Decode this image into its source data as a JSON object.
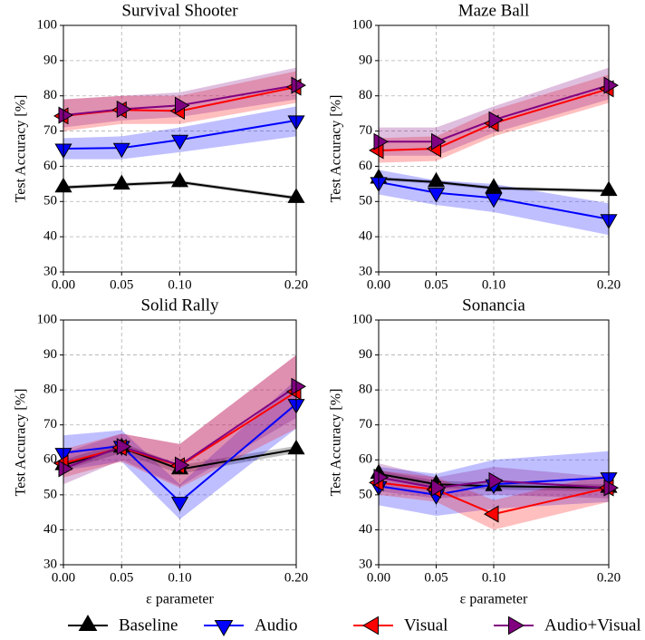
{
  "chart_data": [
    {
      "type": "line",
      "title": "Survival Shooter",
      "ylabel": "Test Accuracy [%]",
      "x": [
        0,
        0.05,
        0.1,
        0.2
      ],
      "xlim": [
        0,
        0.2
      ],
      "ylim": [
        30,
        100
      ],
      "xticks": [
        {
          "value": 0,
          "label": "0.00"
        },
        {
          "value": 0.05,
          "label": "0.05"
        },
        {
          "value": 0.1,
          "label": "0.10"
        },
        {
          "value": 0.2,
          "label": "0.20"
        }
      ],
      "yticks": [
        30,
        40,
        50,
        60,
        70,
        80,
        90,
        100
      ],
      "grid": true,
      "series": [
        {
          "name": "Baseline",
          "color": "#000000",
          "marker": "^",
          "values": [
            54,
            54.8,
            55.5,
            51
          ],
          "lower": [
            53.5,
            54.3,
            55,
            50.5
          ],
          "upper": [
            54.5,
            55.3,
            56,
            51.5
          ]
        },
        {
          "name": "Audio",
          "color": "#0000ff",
          "marker": "v",
          "values": [
            65,
            65.2,
            67.5,
            73
          ],
          "lower": [
            62,
            62,
            64,
            68.5
          ],
          "upper": [
            68,
            68.5,
            71,
            77
          ]
        },
        {
          "name": "Visual",
          "color": "#ff0000",
          "marker": "<",
          "values": [
            74.3,
            76,
            75.7,
            82.5
          ],
          "lower": [
            70,
            72,
            72,
            78
          ],
          "upper": [
            79,
            80,
            80,
            87
          ]
        },
        {
          "name": "Audio+Visual",
          "color": "#800080",
          "marker": ">",
          "values": [
            74.5,
            76.2,
            77.3,
            83
          ],
          "lower": [
            71,
            73,
            74,
            79
          ],
          "upper": [
            79,
            80,
            81,
            88
          ]
        }
      ]
    },
    {
      "type": "line",
      "title": "Maze Ball",
      "ylabel": "Test Accuracy [%]",
      "x": [
        0,
        0.05,
        0.1,
        0.2
      ],
      "xlim": [
        0,
        0.2
      ],
      "ylim": [
        30,
        100
      ],
      "xticks": [
        {
          "value": 0,
          "label": "0.00"
        },
        {
          "value": 0.05,
          "label": "0.05"
        },
        {
          "value": 0.1,
          "label": "0.10"
        },
        {
          "value": 0.2,
          "label": "0.20"
        }
      ],
      "yticks": [
        30,
        40,
        50,
        60,
        70,
        80,
        90,
        100
      ],
      "grid": true,
      "series": [
        {
          "color": "#000000",
          "marker": "^",
          "values": [
            56.5,
            55.5,
            53.8,
            53
          ],
          "lower": [
            56,
            55,
            53.3,
            52.5
          ],
          "upper": [
            57,
            56,
            54.3,
            53.5
          ]
        },
        {
          "color": "#0000ff",
          "marker": "v",
          "values": [
            55.5,
            52.5,
            51,
            45
          ],
          "lower": [
            52,
            49,
            47,
            40.5
          ],
          "upper": [
            59,
            56,
            55,
            49.5
          ]
        },
        {
          "color": "#ff0000",
          "marker": "<",
          "values": [
            64.5,
            65,
            72.2,
            82
          ],
          "lower": [
            61,
            61.5,
            68.5,
            78
          ],
          "upper": [
            68,
            68.5,
            76,
            86
          ]
        },
        {
          "color": "#800080",
          "marker": ">",
          "values": [
            67,
            67,
            73.2,
            83
          ],
          "lower": [
            63,
            63,
            69.5,
            79
          ],
          "upper": [
            71,
            71,
            77,
            88
          ]
        }
      ]
    },
    {
      "type": "line",
      "title": "Solid Rally",
      "ylabel": "Test Accuracy [%]",
      "xlabel": "ε parameter",
      "x": [
        0,
        0.05,
        0.1,
        0.2
      ],
      "xlim": [
        0,
        0.2
      ],
      "ylim": [
        30,
        100
      ],
      "xticks": [
        {
          "value": 0,
          "label": "0.00"
        },
        {
          "value": 0.05,
          "label": "0.05"
        },
        {
          "value": 0.1,
          "label": "0.10"
        },
        {
          "value": 0.2,
          "label": "0.20"
        }
      ],
      "yticks": [
        30,
        40,
        50,
        60,
        70,
        80,
        90,
        100
      ],
      "grid": true,
      "series": [
        {
          "color": "#000000",
          "marker": "^",
          "values": [
            58.5,
            63.5,
            57.3,
            63
          ],
          "lower": [
            57,
            62,
            56,
            62
          ],
          "upper": [
            60,
            65,
            58.5,
            64
          ]
        },
        {
          "color": "#0000ff",
          "marker": "v",
          "values": [
            62,
            64,
            48,
            76
          ],
          "lower": [
            57,
            59.5,
            43,
            69
          ],
          "upper": [
            67,
            68.5,
            53,
            83
          ]
        },
        {
          "color": "#ff0000",
          "marker": "<",
          "values": [
            59,
            63.5,
            58.3,
            79.5
          ],
          "lower": [
            55,
            59.5,
            52,
            69
          ],
          "upper": [
            63,
            67.5,
            64.5,
            90
          ]
        },
        {
          "color": "#800080",
          "marker": ">",
          "values": [
            57.5,
            63.8,
            58.5,
            81
          ],
          "lower": [
            53,
            60,
            52.5,
            72
          ],
          "upper": [
            62,
            67.5,
            64.5,
            90
          ]
        }
      ]
    },
    {
      "type": "line",
      "title": "Sonancia",
      "ylabel": "Test Accuracy [%]",
      "xlabel": "ε parameter",
      "x": [
        0,
        0.05,
        0.1,
        0.2
      ],
      "xlim": [
        0,
        0.2
      ],
      "ylim": [
        30,
        100
      ],
      "xticks": [
        {
          "value": 0,
          "label": "0.00"
        },
        {
          "value": 0.05,
          "label": "0.05"
        },
        {
          "value": 0.1,
          "label": "0.10"
        },
        {
          "value": 0.2,
          "label": "0.20"
        }
      ],
      "yticks": [
        30,
        40,
        50,
        60,
        70,
        80,
        90,
        100
      ],
      "grid": true,
      "series": [
        {
          "color": "#000000",
          "marker": "^",
          "values": [
            56,
            53,
            52.5,
            52
          ],
          "lower": [
            55,
            52,
            51.5,
            51
          ],
          "upper": [
            57,
            54,
            53.5,
            53
          ]
        },
        {
          "color": "#0000ff",
          "marker": "v",
          "values": [
            52.5,
            50,
            53,
            55
          ],
          "lower": [
            47,
            44,
            46,
            48
          ],
          "upper": [
            58,
            56,
            60,
            62.5
          ]
        },
        {
          "color": "#ff0000",
          "marker": "<",
          "values": [
            53.5,
            51.5,
            44.5,
            52
          ],
          "lower": [
            50,
            48,
            40,
            48
          ],
          "upper": [
            57,
            55,
            48.5,
            56
          ]
        },
        {
          "color": "#800080",
          "marker": ">",
          "values": [
            55,
            52,
            54,
            52
          ],
          "lower": [
            51,
            49,
            50,
            49
          ],
          "upper": [
            59,
            55,
            58,
            55
          ]
        }
      ]
    }
  ]
}
